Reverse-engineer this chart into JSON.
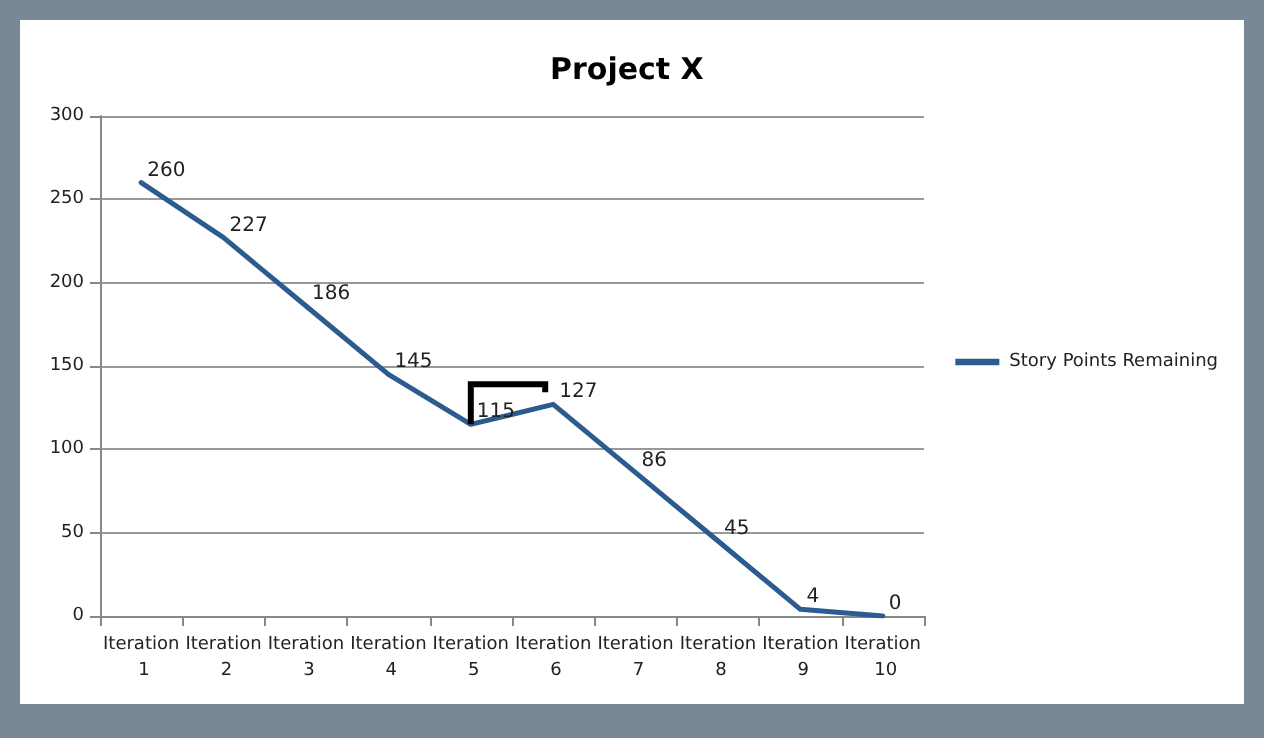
{
  "chart_data": {
    "type": "line",
    "title": "Project X",
    "categories": [
      "Iteration 1",
      "Iteration 2",
      "Iteration 3",
      "Iteration 4",
      "Iteration 5",
      "Iteration 6",
      "Iteration 7",
      "Iteration 8",
      "Iteration 9",
      "Iteration 10"
    ],
    "series": [
      {
        "name": "Story Points Remaining",
        "color": "#2b5b8f",
        "values": [
          260,
          227,
          186,
          145,
          115,
          127,
          86,
          45,
          4,
          0
        ]
      }
    ],
    "ylim": [
      0,
      300
    ],
    "yticks": [
      0,
      50,
      100,
      150,
      200,
      250,
      300
    ],
    "grid": "y",
    "legend": "right",
    "data_labels": true,
    "marker": "none",
    "line_style": "solid"
  }
}
